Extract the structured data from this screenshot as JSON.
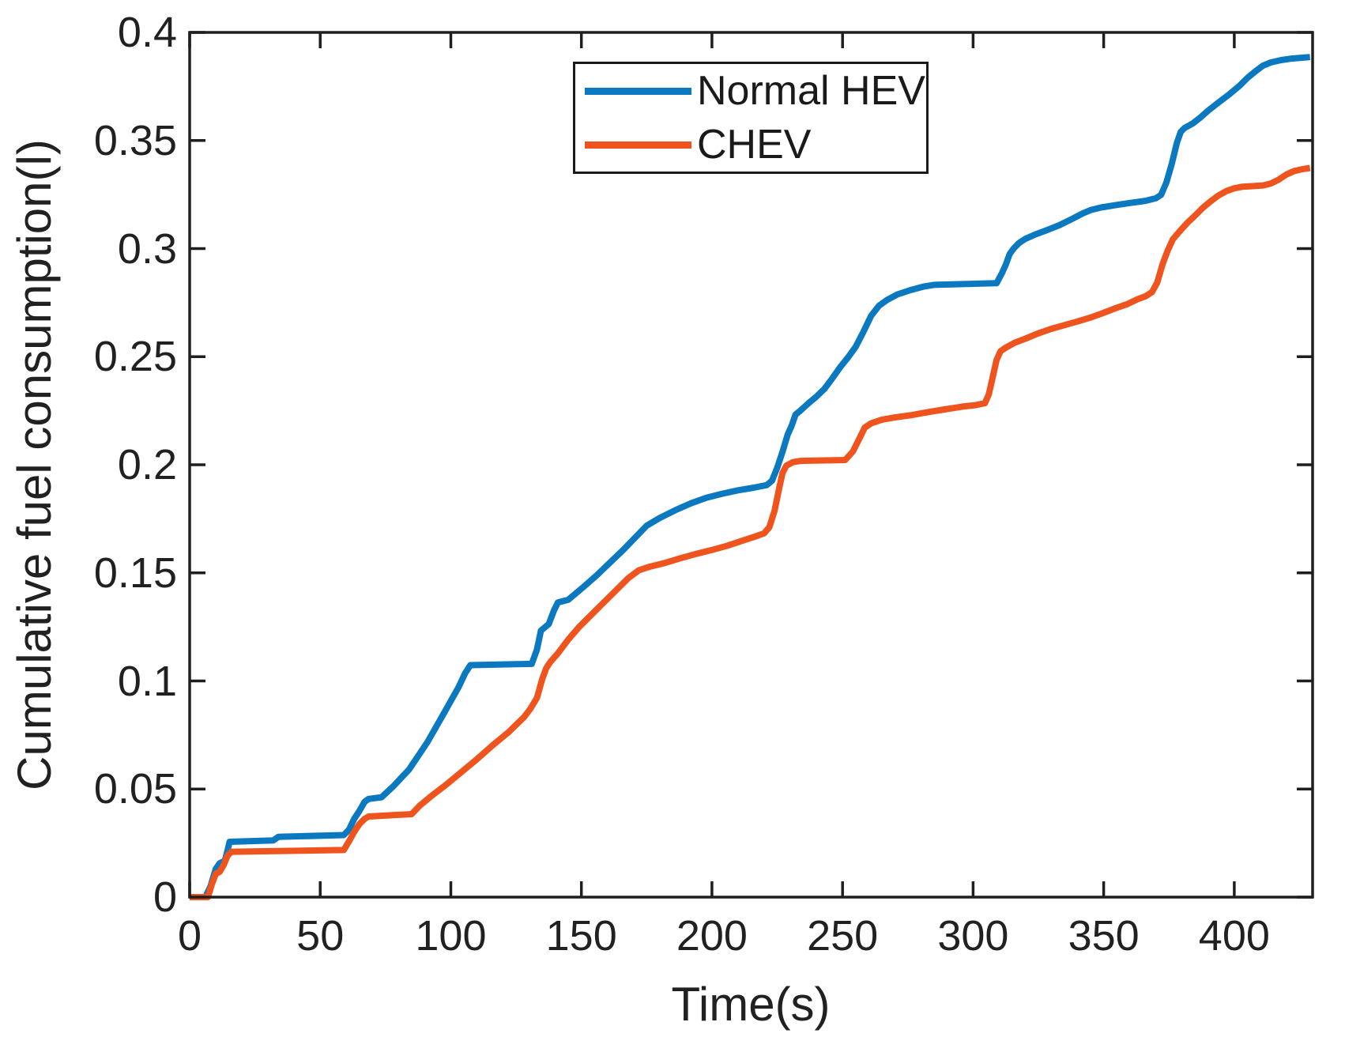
{
  "figure": {
    "background": "#ffffff",
    "axis_color": "#1f1f1f",
    "text_color": "#212121"
  },
  "legend": {
    "items": [
      {
        "label": "Normal HEV",
        "color": "#0b79c0"
      },
      {
        "label": "CHEV",
        "color": "#f0541e"
      }
    ]
  },
  "chart_data": {
    "type": "line",
    "title": "",
    "xlabel": "Time(s)",
    "ylabel": "Cumulative fuel consumption(l)",
    "xlim": [
      0,
      430
    ],
    "ylim": [
      0,
      0.4
    ],
    "grid": false,
    "legend_position": "upper center",
    "xticks": [
      0,
      50,
      100,
      150,
      200,
      250,
      300,
      350,
      400
    ],
    "xtick_labels": [
      "0",
      "50",
      "100",
      "150",
      "200",
      "250",
      "300",
      "350",
      "400"
    ],
    "yticks": [
      0,
      0.05,
      0.1,
      0.15,
      0.2,
      0.25,
      0.3,
      0.35,
      0.4
    ],
    "ytick_labels": [
      "0",
      "0.05",
      "0.1",
      "0.15",
      "0.2",
      "0.25",
      "0.3",
      "0.35",
      "0.4"
    ],
    "series": [
      {
        "name": "Normal HEV",
        "color": "#0b79c0",
        "points": [
          [
            0,
            0
          ],
          [
            6,
            0
          ],
          [
            8,
            0.005
          ],
          [
            10,
            0.013
          ],
          [
            11.5,
            0.0157
          ],
          [
            13.5,
            0.0168
          ],
          [
            15.3,
            0.0256
          ],
          [
            32,
            0.0262
          ],
          [
            34,
            0.0279
          ],
          [
            59,
            0.0287
          ],
          [
            61,
            0.0312
          ],
          [
            63,
            0.0362
          ],
          [
            65,
            0.0399
          ],
          [
            67,
            0.0441
          ],
          [
            68.5,
            0.0454
          ],
          [
            73.5,
            0.0462
          ],
          [
            78,
            0.0513
          ],
          [
            84,
            0.059
          ],
          [
            91,
            0.0716
          ],
          [
            97,
            0.0843
          ],
          [
            103,
            0.0972
          ],
          [
            105.5,
            0.1036
          ],
          [
            107.5,
            0.1073
          ],
          [
            131,
            0.1079
          ],
          [
            133,
            0.1146
          ],
          [
            134.5,
            0.1233
          ],
          [
            137.5,
            0.1263
          ],
          [
            139.5,
            0.1326
          ],
          [
            141,
            0.1363
          ],
          [
            145,
            0.1376
          ],
          [
            151,
            0.1437
          ],
          [
            156,
            0.149
          ],
          [
            161,
            0.1548
          ],
          [
            166,
            0.1606
          ],
          [
            170,
            0.1656
          ],
          [
            175,
            0.1718
          ],
          [
            180,
            0.1754
          ],
          [
            186,
            0.179
          ],
          [
            192,
            0.1822
          ],
          [
            198,
            0.1848
          ],
          [
            204,
            0.1866
          ],
          [
            210,
            0.1882
          ],
          [
            216,
            0.1894
          ],
          [
            221,
            0.1906
          ],
          [
            223,
            0.1926
          ],
          [
            225,
            0.1986
          ],
          [
            227,
            0.206
          ],
          [
            229,
            0.214
          ],
          [
            230.5,
            0.218
          ],
          [
            232,
            0.2232
          ],
          [
            234,
            0.2252
          ],
          [
            237,
            0.2285
          ],
          [
            240,
            0.2315
          ],
          [
            243,
            0.235
          ],
          [
            246,
            0.2398
          ],
          [
            249,
            0.245
          ],
          [
            252,
            0.2495
          ],
          [
            255,
            0.2545
          ],
          [
            258,
            0.2615
          ],
          [
            261,
            0.269
          ],
          [
            264,
            0.2736
          ],
          [
            267,
            0.2762
          ],
          [
            271,
            0.2788
          ],
          [
            276,
            0.2808
          ],
          [
            281,
            0.2824
          ],
          [
            285,
            0.2832
          ],
          [
            309,
            0.284
          ],
          [
            311,
            0.2885
          ],
          [
            312.5,
            0.2925
          ],
          [
            314,
            0.2975
          ],
          [
            315.5,
            0.3
          ],
          [
            317.5,
            0.3025
          ],
          [
            320,
            0.3045
          ],
          [
            324,
            0.3066
          ],
          [
            328,
            0.3084
          ],
          [
            333,
            0.3108
          ],
          [
            338,
            0.3138
          ],
          [
            342,
            0.3163
          ],
          [
            345,
            0.3178
          ],
          [
            349,
            0.319
          ],
          [
            354,
            0.32
          ],
          [
            360,
            0.3211
          ],
          [
            366,
            0.3221
          ],
          [
            370,
            0.3233
          ],
          [
            372,
            0.3249
          ],
          [
            374,
            0.3305
          ],
          [
            376,
            0.3388
          ],
          [
            378,
            0.3488
          ],
          [
            379.5,
            0.354
          ],
          [
            381,
            0.3558
          ],
          [
            384,
            0.3578
          ],
          [
            387,
            0.3606
          ],
          [
            390,
            0.3638
          ],
          [
            394,
            0.3676
          ],
          [
            398,
            0.3713
          ],
          [
            402,
            0.3753
          ],
          [
            405,
            0.3789
          ],
          [
            408,
            0.3819
          ],
          [
            411,
            0.3846
          ],
          [
            414,
            0.3861
          ],
          [
            418,
            0.3872
          ],
          [
            422,
            0.3879
          ],
          [
            426,
            0.3883
          ],
          [
            429,
            0.3886
          ]
        ]
      },
      {
        "name": "CHEV",
        "color": "#f0541e",
        "points": [
          [
            0,
            0
          ],
          [
            7,
            0
          ],
          [
            8.5,
            0.006
          ],
          [
            10,
            0.0108
          ],
          [
            11.5,
            0.0117
          ],
          [
            13,
            0.0148
          ],
          [
            14.5,
            0.0192
          ],
          [
            16,
            0.021
          ],
          [
            59,
            0.0218
          ],
          [
            61,
            0.0258
          ],
          [
            63,
            0.0302
          ],
          [
            65,
            0.0338
          ],
          [
            67,
            0.0362
          ],
          [
            68.5,
            0.0373
          ],
          [
            85,
            0.0384
          ],
          [
            88,
            0.0422
          ],
          [
            93,
            0.0472
          ],
          [
            98,
            0.0518
          ],
          [
            104,
            0.0578
          ],
          [
            110,
            0.0638
          ],
          [
            116,
            0.0702
          ],
          [
            122,
            0.0762
          ],
          [
            128,
            0.0832
          ],
          [
            130.5,
            0.0872
          ],
          [
            133,
            0.0922
          ],
          [
            135,
            0.1008
          ],
          [
            136.5,
            0.1058
          ],
          [
            138,
            0.1086
          ],
          [
            141,
            0.1128
          ],
          [
            145,
            0.1192
          ],
          [
            149,
            0.1248
          ],
          [
            153,
            0.1296
          ],
          [
            158,
            0.1356
          ],
          [
            163,
            0.1416
          ],
          [
            168,
            0.1476
          ],
          [
            172,
            0.1512
          ],
          [
            176,
            0.1528
          ],
          [
            182,
            0.1546
          ],
          [
            188,
            0.1568
          ],
          [
            194,
            0.1588
          ],
          [
            200,
            0.1606
          ],
          [
            206,
            0.1626
          ],
          [
            212,
            0.165
          ],
          [
            217,
            0.167
          ],
          [
            220,
            0.1683
          ],
          [
            222,
            0.1712
          ],
          [
            224,
            0.1788
          ],
          [
            225.5,
            0.1878
          ],
          [
            227,
            0.1962
          ],
          [
            228.5,
            0.1996
          ],
          [
            231,
            0.2012
          ],
          [
            234,
            0.2018
          ],
          [
            251,
            0.2022
          ],
          [
            254,
            0.2062
          ],
          [
            256.5,
            0.2122
          ],
          [
            258.5,
            0.2172
          ],
          [
            261,
            0.2192
          ],
          [
            265,
            0.2208
          ],
          [
            270,
            0.2219
          ],
          [
            276,
            0.2229
          ],
          [
            282,
            0.2242
          ],
          [
            289,
            0.2256
          ],
          [
            296,
            0.2269
          ],
          [
            301,
            0.2276
          ],
          [
            304.5,
            0.2285
          ],
          [
            306,
            0.2325
          ],
          [
            307.5,
            0.2405
          ],
          [
            309,
            0.2485
          ],
          [
            310.5,
            0.2525
          ],
          [
            312.5,
            0.2542
          ],
          [
            316,
            0.2565
          ],
          [
            320,
            0.2583
          ],
          [
            325,
            0.2608
          ],
          [
            330,
            0.2629
          ],
          [
            335,
            0.2646
          ],
          [
            340,
            0.2663
          ],
          [
            345,
            0.2681
          ],
          [
            350,
            0.2703
          ],
          [
            355,
            0.2726
          ],
          [
            359,
            0.2743
          ],
          [
            363,
            0.2766
          ],
          [
            366,
            0.2779
          ],
          [
            368.5,
            0.2799
          ],
          [
            370.5,
            0.2843
          ],
          [
            372.5,
            0.2926
          ],
          [
            374.5,
            0.2991
          ],
          [
            376.5,
            0.3043
          ],
          [
            379,
            0.3079
          ],
          [
            382,
            0.3119
          ],
          [
            385,
            0.3153
          ],
          [
            388,
            0.3189
          ],
          [
            391,
            0.3219
          ],
          [
            394,
            0.3246
          ],
          [
            397,
            0.3266
          ],
          [
            400,
            0.3279
          ],
          [
            403,
            0.3286
          ],
          [
            407,
            0.3289
          ],
          [
            411,
            0.3292
          ],
          [
            414,
            0.3301
          ],
          [
            417,
            0.3319
          ],
          [
            420,
            0.3343
          ],
          [
            423,
            0.3359
          ],
          [
            426,
            0.3367
          ],
          [
            429,
            0.3373
          ]
        ]
      }
    ]
  }
}
